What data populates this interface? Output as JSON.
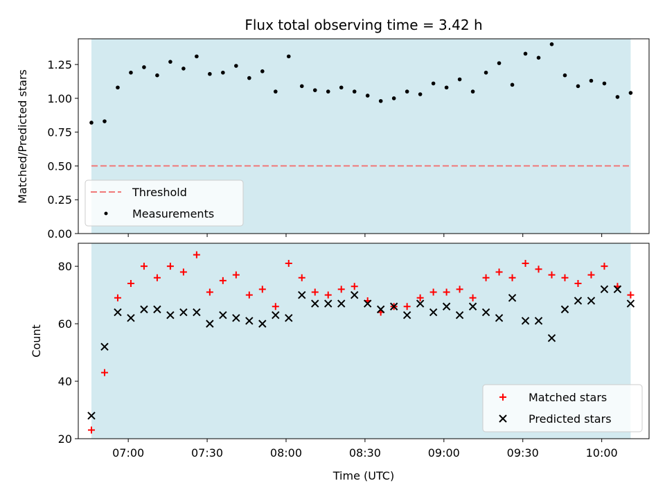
{
  "chart_data": [
    {
      "type": "scatter",
      "title": "Flux total observing time = 3.42 h",
      "xlabel": "",
      "ylabel": "Matched/Predicted stars",
      "xlim": [
        "06:41",
        "10:18"
      ],
      "ylim": [
        0.0,
        1.44
      ],
      "yticks": [
        "0.00",
        "0.25",
        "0.50",
        "0.75",
        "1.00",
        "1.25"
      ],
      "ytick_values": [
        0.0,
        0.25,
        0.5,
        0.75,
        1.0,
        1.25
      ],
      "shaded_span": [
        "06:46",
        "10:11"
      ],
      "shade_color": "#d3eaf0",
      "threshold": {
        "name": "Threshold",
        "value": 0.5,
        "color": "#f07878",
        "style": "dashed"
      },
      "legend": {
        "position": "lower-left",
        "entries": [
          "Threshold",
          "Measurements"
        ]
      },
      "series": [
        {
          "name": "Measurements",
          "marker": "dot",
          "color": "#000000",
          "x": [
            "06:46",
            "06:51",
            "06:56",
            "07:01",
            "07:06",
            "07:11",
            "07:16",
            "07:21",
            "07:26",
            "07:31",
            "07:36",
            "07:41",
            "07:46",
            "07:51",
            "07:56",
            "08:01",
            "08:06",
            "08:11",
            "08:16",
            "08:21",
            "08:26",
            "08:31",
            "08:36",
            "08:41",
            "08:46",
            "08:51",
            "08:56",
            "09:01",
            "09:06",
            "09:11",
            "09:16",
            "09:21",
            "09:26",
            "09:31",
            "09:36",
            "09:41",
            "09:46",
            "09:51",
            "09:56",
            "10:01",
            "10:06",
            "10:11"
          ],
          "y": [
            0.82,
            0.83,
            1.08,
            1.19,
            1.23,
            1.17,
            1.27,
            1.22,
            1.31,
            1.18,
            1.19,
            1.24,
            1.15,
            1.2,
            1.05,
            1.31,
            1.09,
            1.06,
            1.05,
            1.08,
            1.05,
            1.02,
            0.98,
            1.0,
            1.05,
            1.03,
            1.11,
            1.08,
            1.14,
            1.05,
            1.19,
            1.26,
            1.1,
            1.33,
            1.3,
            1.4,
            1.17,
            1.09,
            1.13,
            1.11,
            1.01,
            1.04
          ]
        }
      ]
    },
    {
      "type": "scatter",
      "title": "",
      "xlabel": "Time (UTC)",
      "ylabel": "Count",
      "xlim": [
        "06:41",
        "10:18"
      ],
      "ylim": [
        20,
        88
      ],
      "xticks": [
        "07:00",
        "07:30",
        "08:00",
        "08:30",
        "09:00",
        "09:30",
        "10:00"
      ],
      "yticks": [
        "20",
        "40",
        "60",
        "80"
      ],
      "ytick_values": [
        20,
        40,
        60,
        80
      ],
      "shaded_span": [
        "06:46",
        "10:11"
      ],
      "shade_color": "#d3eaf0",
      "legend": {
        "position": "lower-right",
        "entries": [
          "Matched stars",
          "Predicted stars"
        ]
      },
      "series": [
        {
          "name": "Matched stars",
          "marker": "plus",
          "color": "#ff0000",
          "x": [
            "06:46",
            "06:51",
            "06:56",
            "07:01",
            "07:06",
            "07:11",
            "07:16",
            "07:21",
            "07:26",
            "07:31",
            "07:36",
            "07:41",
            "07:46",
            "07:51",
            "07:56",
            "08:01",
            "08:06",
            "08:11",
            "08:16",
            "08:21",
            "08:26",
            "08:31",
            "08:36",
            "08:41",
            "08:46",
            "08:51",
            "08:56",
            "09:01",
            "09:06",
            "09:11",
            "09:16",
            "09:21",
            "09:26",
            "09:31",
            "09:36",
            "09:41",
            "09:46",
            "09:51",
            "09:56",
            "10:01",
            "10:06",
            "10:11"
          ],
          "y": [
            23,
            43,
            69,
            74,
            80,
            76,
            80,
            78,
            84,
            71,
            75,
            77,
            70,
            72,
            66,
            81,
            76,
            71,
            70,
            72,
            73,
            68,
            64,
            66,
            66,
            69,
            71,
            71,
            72,
            69,
            76,
            78,
            76,
            81,
            79,
            77,
            76,
            74,
            77,
            80,
            73,
            70
          ]
        },
        {
          "name": "Predicted stars",
          "marker": "x",
          "color": "#000000",
          "x": [
            "06:46",
            "06:51",
            "06:56",
            "07:01",
            "07:06",
            "07:11",
            "07:16",
            "07:21",
            "07:26",
            "07:31",
            "07:36",
            "07:41",
            "07:46",
            "07:51",
            "07:56",
            "08:01",
            "08:06",
            "08:11",
            "08:16",
            "08:21",
            "08:26",
            "08:31",
            "08:36",
            "08:41",
            "08:46",
            "08:51",
            "08:56",
            "09:01",
            "09:06",
            "09:11",
            "09:16",
            "09:21",
            "09:26",
            "09:31",
            "09:36",
            "09:41",
            "09:46",
            "09:51",
            "09:56",
            "10:01",
            "10:06",
            "10:11"
          ],
          "y": [
            28,
            52,
            64,
            62,
            65,
            65,
            63,
            64,
            64,
            60,
            63,
            62,
            61,
            60,
            63,
            62,
            70,
            67,
            67,
            67,
            70,
            67,
            65,
            66,
            63,
            67,
            64,
            66,
            63,
            66,
            64,
            62,
            69,
            61,
            61,
            55,
            65,
            68,
            68,
            72,
            72,
            67
          ]
        }
      ]
    }
  ]
}
